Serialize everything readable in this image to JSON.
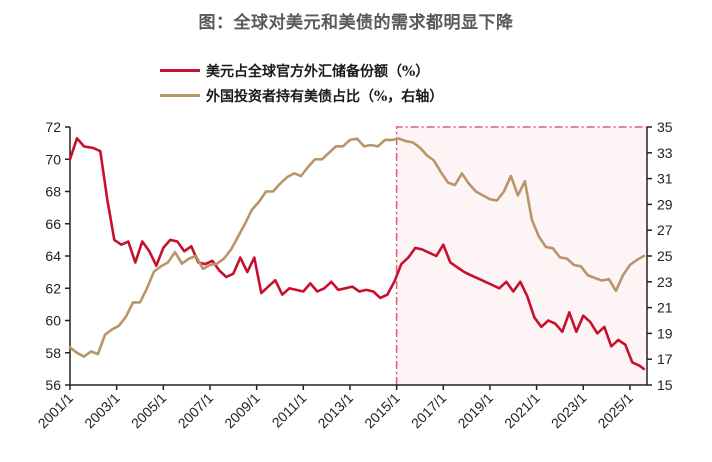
{
  "title": "图：全球对美元和美债的需求都明显下降",
  "legend": [
    {
      "label": "美元占全球官方外汇储备份额（%）",
      "color": "#c8102e"
    },
    {
      "label": "外国投资者持有美债占比（%，右轴）",
      "color": "#b8956a"
    }
  ],
  "chart_data": {
    "type": "line",
    "title": "图：全球对美元和美债的需求都明显下降",
    "xlabel": "",
    "ylabel_left": "",
    "ylabel_right": "",
    "x_tick_labels": [
      "2001/1",
      "2003/1",
      "2005/1",
      "2007/1",
      "2009/1",
      "2011/1",
      "2013/1",
      "2015/1",
      "2017/1",
      "2019/1",
      "2021/1",
      "2023/1",
      "2025/1"
    ],
    "y_left_ticks": [
      56,
      58,
      60,
      62,
      64,
      66,
      68,
      70,
      72
    ],
    "y_right_ticks": [
      15,
      17,
      19,
      21,
      23,
      25,
      27,
      29,
      31,
      33,
      35
    ],
    "ylim_left": [
      56,
      72
    ],
    "ylim_right": [
      15,
      35
    ],
    "grid": false,
    "legend_position": "top",
    "highlight_region": {
      "x_start": "2015/1",
      "x_end": "end",
      "fill": "#fdf5f5",
      "border": "#e06070",
      "style": "dash-dot"
    },
    "series": [
      {
        "name": "美元占全球官方外汇储备份额（%）",
        "axis": "left",
        "color": "#c8102e",
        "x": [
          2001.0,
          2001.3,
          2001.6,
          2002.0,
          2002.3,
          2002.6,
          2002.9,
          2003.2,
          2003.5,
          2003.8,
          2004.1,
          2004.4,
          2004.7,
          2005.0,
          2005.3,
          2005.6,
          2005.9,
          2006.2,
          2006.5,
          2006.8,
          2007.1,
          2007.4,
          2007.7,
          2008.0,
          2008.3,
          2008.6,
          2008.9,
          2009.2,
          2009.5,
          2009.8,
          2010.1,
          2010.4,
          2010.7,
          2011.0,
          2011.3,
          2011.6,
          2011.9,
          2012.2,
          2012.5,
          2012.8,
          2013.1,
          2013.4,
          2013.7,
          2014.0,
          2014.3,
          2014.6,
          2014.9,
          2015.2,
          2015.5,
          2015.8,
          2016.1,
          2016.4,
          2016.7,
          2017.0,
          2017.3,
          2017.6,
          2017.9,
          2018.2,
          2018.5,
          2018.8,
          2019.1,
          2019.4,
          2019.7,
          2020.0,
          2020.3,
          2020.6,
          2020.9,
          2021.2,
          2021.5,
          2021.8,
          2022.1,
          2022.4,
          2022.7,
          2023.0,
          2023.3,
          2023.6,
          2023.9,
          2024.2,
          2024.5,
          2024.8,
          2025.1,
          2025.4,
          2025.6
        ],
        "values": [
          70.0,
          71.3,
          70.8,
          70.7,
          70.5,
          67.5,
          65.0,
          64.7,
          64.9,
          63.6,
          64.9,
          64.3,
          63.4,
          64.5,
          65.0,
          64.9,
          64.3,
          64.6,
          63.6,
          63.5,
          63.7,
          63.1,
          62.7,
          62.9,
          63.9,
          63.0,
          63.9,
          61.7,
          62.1,
          62.5,
          61.6,
          62.0,
          61.9,
          61.8,
          62.3,
          61.8,
          62.0,
          62.4,
          61.9,
          62.0,
          62.1,
          61.8,
          61.9,
          61.8,
          61.4,
          61.6,
          62.4,
          63.5,
          63.9,
          64.5,
          64.4,
          64.2,
          64.0,
          64.7,
          63.6,
          63.3,
          63.0,
          62.8,
          62.6,
          62.4,
          62.2,
          62.0,
          62.4,
          61.8,
          62.4,
          61.5,
          60.2,
          59.6,
          60.0,
          59.8,
          59.3,
          60.5,
          59.3,
          60.3,
          59.9,
          59.2,
          59.6,
          58.4,
          58.8,
          58.5,
          57.4,
          57.2,
          57.0
        ]
      },
      {
        "name": "外国投资者持有美债占比（%，右轴）",
        "axis": "right",
        "color": "#b8956a",
        "x": [
          2001.0,
          2001.3,
          2001.6,
          2001.9,
          2002.2,
          2002.5,
          2002.8,
          2003.1,
          2003.4,
          2003.7,
          2004.0,
          2004.3,
          2004.6,
          2004.9,
          2005.2,
          2005.5,
          2005.8,
          2006.1,
          2006.4,
          2006.7,
          2007.0,
          2007.3,
          2007.6,
          2007.9,
          2008.2,
          2008.5,
          2008.8,
          2009.1,
          2009.4,
          2009.7,
          2010.0,
          2010.3,
          2010.6,
          2010.9,
          2011.2,
          2011.5,
          2011.8,
          2012.1,
          2012.4,
          2012.7,
          2013.0,
          2013.3,
          2013.6,
          2013.9,
          2014.2,
          2014.5,
          2014.8,
          2015.1,
          2015.4,
          2015.7,
          2016.0,
          2016.3,
          2016.6,
          2016.9,
          2017.2,
          2017.5,
          2017.8,
          2018.1,
          2018.4,
          2018.7,
          2019.0,
          2019.3,
          2019.6,
          2019.9,
          2020.2,
          2020.5,
          2020.8,
          2021.1,
          2021.4,
          2021.7,
          2022.0,
          2022.3,
          2022.6,
          2022.9,
          2023.2,
          2023.5,
          2023.8,
          2024.1,
          2024.4,
          2024.7,
          2025.0,
          2025.3,
          2025.6
        ],
        "values": [
          17.9,
          17.5,
          17.2,
          17.6,
          17.4,
          18.9,
          19.3,
          19.6,
          20.3,
          21.4,
          21.4,
          22.5,
          23.8,
          24.2,
          24.5,
          25.3,
          24.4,
          24.8,
          25.0,
          24.0,
          24.3,
          24.4,
          24.8,
          25.5,
          26.5,
          27.5,
          28.6,
          29.2,
          30.0,
          30.0,
          30.6,
          31.1,
          31.4,
          31.2,
          31.9,
          32.5,
          32.5,
          33.0,
          33.5,
          33.5,
          34.0,
          34.1,
          33.5,
          33.6,
          33.5,
          34.0,
          34.0,
          34.1,
          33.9,
          33.8,
          33.4,
          32.8,
          32.4,
          31.5,
          30.7,
          30.5,
          31.4,
          30.6,
          30.0,
          29.7,
          29.4,
          29.3,
          30.0,
          31.2,
          29.7,
          30.8,
          27.8,
          26.5,
          25.7,
          25.6,
          24.9,
          24.8,
          24.3,
          24.2,
          23.5,
          23.3,
          23.1,
          23.2,
          22.3,
          23.5,
          24.3,
          24.7,
          25.0
        ]
      }
    ]
  }
}
